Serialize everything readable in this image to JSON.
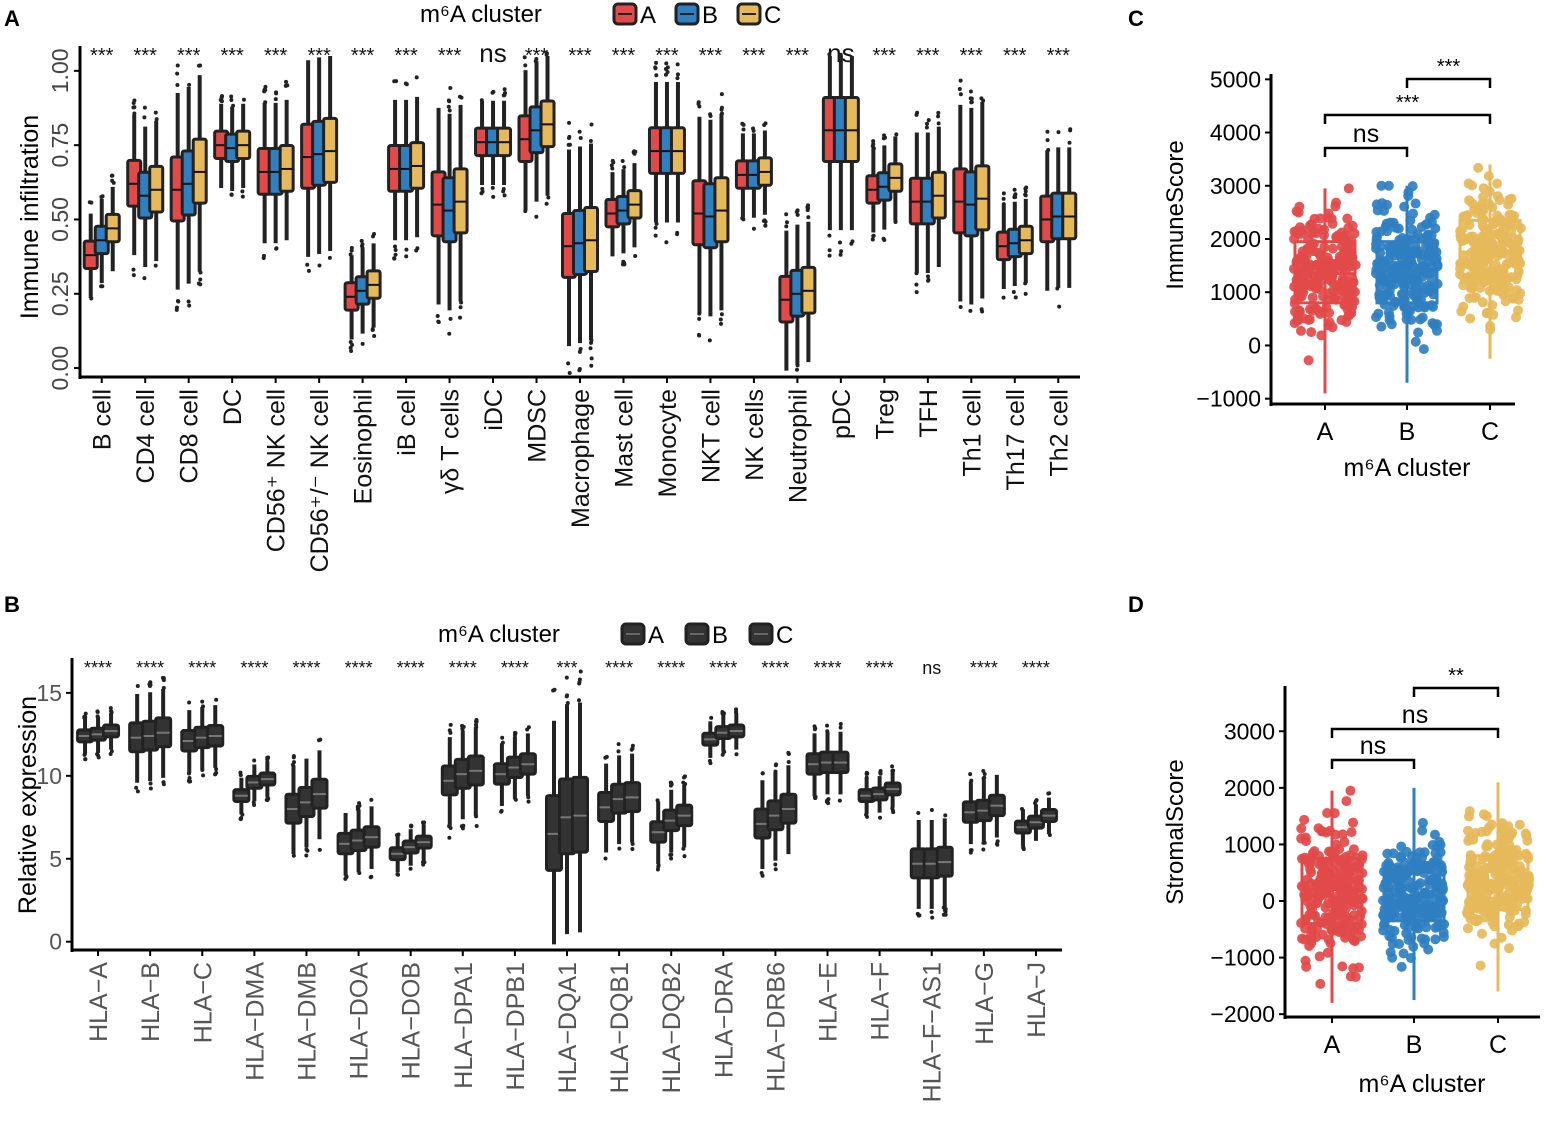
{
  "colors": {
    "A": "#e24a4a",
    "B": "#2f7fc1",
    "C": "#e6b95a",
    "dark": "#333333",
    "axis": "#000000"
  },
  "chart_data": [
    {
      "panel": "A",
      "type": "box",
      "legend_title": "m⁶A cluster",
      "legend": [
        "A",
        "B",
        "C"
      ],
      "ylabel": "Immune infiltration",
      "ylim": [
        -0.03,
        1.05
      ],
      "yticks": [
        "0.00",
        "0.25",
        "0.50",
        "0.75",
        "1.00"
      ],
      "categories": [
        "B cell",
        "CD4 cell",
        "CD8 cell",
        "DC",
        "CD56⁺ NK cell",
        "CD56⁺/⁻ NK cell",
        "Eosinophil",
        "iB cell",
        "γδ T cells",
        "iDC",
        "MDSC",
        "Macrophage",
        "Mast cell",
        "Monocyte",
        "NKT cell",
        "NK cells",
        "Neutrophil",
        "pDC",
        "Treg",
        "TFH",
        "Th1 cell",
        "Th17 cell",
        "Th2 cell"
      ],
      "significance": [
        "***",
        "***",
        "***",
        "***",
        "***",
        "***",
        "***",
        "***",
        "***",
        "ns",
        "***",
        "***",
        "***",
        "***",
        "***",
        "***",
        "***",
        "ns",
        "***",
        "***",
        "***",
        "***",
        "***"
      ],
      "medians": {
        "A": [
          0.38,
          0.62,
          0.6,
          0.75,
          0.66,
          0.71,
          0.24,
          0.67,
          0.55,
          0.76,
          0.77,
          0.41,
          0.52,
          0.73,
          0.52,
          0.65,
          0.23,
          0.8,
          0.6,
          0.56,
          0.56,
          0.41,
          0.5
        ],
        "B": [
          0.43,
          0.58,
          0.62,
          0.74,
          0.66,
          0.72,
          0.26,
          0.67,
          0.53,
          0.76,
          0.8,
          0.42,
          0.53,
          0.73,
          0.51,
          0.65,
          0.25,
          0.8,
          0.61,
          0.56,
          0.55,
          0.42,
          0.51
        ],
        "C": [
          0.47,
          0.6,
          0.66,
          0.75,
          0.67,
          0.73,
          0.28,
          0.68,
          0.56,
          0.76,
          0.82,
          0.43,
          0.55,
          0.73,
          0.53,
          0.66,
          0.26,
          0.8,
          0.64,
          0.58,
          0.57,
          0.43,
          0.51
        ]
      }
    },
    {
      "panel": "B",
      "type": "box",
      "legend_title": "m⁶A cluster",
      "legend": [
        "A",
        "B",
        "C"
      ],
      "ylabel": "Relative expression",
      "ylim": [
        -0.5,
        16.5
      ],
      "yticks": [
        "0",
        "5",
        "10",
        "15"
      ],
      "categories": [
        "HLA−A",
        "HLA−B",
        "HLA−C",
        "HLA−DMA",
        "HLA−DMB",
        "HLA−DOA",
        "HLA−DOB",
        "HLA−DPA1",
        "HLA−DPB1",
        "HLA−DQA1",
        "HLA−DQB1",
        "HLA−DQB2",
        "HLA−DRA",
        "HLA−DRB6",
        "HLA−E",
        "HLA−F",
        "HLA−F−AS1",
        "HLA−G",
        "HLA−J"
      ],
      "significance": [
        "****",
        "****",
        "****",
        "****",
        "****",
        "****",
        "****",
        "****",
        "****",
        "***",
        "****",
        "****",
        "****",
        "****",
        "****",
        "****",
        "ns",
        "****",
        "****"
      ],
      "medians": {
        "A": [
          12.4,
          12.3,
          12.1,
          8.8,
          8.0,
          5.9,
          5.3,
          9.7,
          10.1,
          6.5,
          8.1,
          6.6,
          12.2,
          7.1,
          10.7,
          8.8,
          4.7,
          7.8,
          6.9
        ],
        "B": [
          12.5,
          12.4,
          12.3,
          9.6,
          8.4,
          6.1,
          5.7,
          10.1,
          10.5,
          7.5,
          8.6,
          7.3,
          12.6,
          7.6,
          10.8,
          8.9,
          4.7,
          7.9,
          7.2
        ],
        "C": [
          12.7,
          12.6,
          12.4,
          9.8,
          8.9,
          6.3,
          6.0,
          10.3,
          10.7,
          7.6,
          8.7,
          7.6,
          12.7,
          8.0,
          10.8,
          9.2,
          4.8,
          8.2,
          7.6
        ]
      }
    },
    {
      "panel": "C",
      "type": "box_scatter",
      "xlabel": "m⁶A cluster",
      "ylabel": "ImmuneScore",
      "categories": [
        "A",
        "B",
        "C"
      ],
      "ylim": [
        -1100,
        5100
      ],
      "yticks": [
        "−1000",
        "0",
        "1000",
        "2000",
        "3000",
        "4000",
        "5000"
      ],
      "boxes": [
        {
          "group": "A",
          "q1": 800,
          "median": 1350,
          "q3": 1950,
          "min": -900,
          "max": 2950
        },
        {
          "group": "B",
          "q1": 800,
          "median": 1400,
          "q3": 1950,
          "min": -700,
          "max": 3000
        },
        {
          "group": "C",
          "q1": 1300,
          "median": 1750,
          "q3": 2350,
          "min": -250,
          "max": 3400
        }
      ],
      "comparisons": [
        {
          "from": "B",
          "to": "C",
          "label": "***"
        },
        {
          "from": "A",
          "to": "C",
          "label": "***"
        },
        {
          "from": "A",
          "to": "B",
          "label": "ns"
        }
      ]
    },
    {
      "panel": "D",
      "type": "box_scatter",
      "xlabel": "m⁶A cluster",
      "ylabel": "StromalScore",
      "categories": [
        "A",
        "B",
        "C"
      ],
      "ylim": [
        -2050,
        3800
      ],
      "yticks": [
        "−2000",
        "−1000",
        "0",
        "1000",
        "2000",
        "3000"
      ],
      "boxes": [
        {
          "group": "A",
          "q1": -400,
          "median": 200,
          "q3": 750,
          "min": -1800,
          "max": 1950
        },
        {
          "group": "B",
          "q1": -350,
          "median": 100,
          "q3": 550,
          "min": -1750,
          "max": 2000
        },
        {
          "group": "C",
          "q1": -150,
          "median": 350,
          "q3": 800,
          "min": -1600,
          "max": 2100
        }
      ],
      "comparisons": [
        {
          "from": "B",
          "to": "C",
          "label": "**"
        },
        {
          "from": "A",
          "to": "C",
          "label": "ns"
        },
        {
          "from": "A",
          "to": "B",
          "label": "ns"
        }
      ]
    }
  ]
}
